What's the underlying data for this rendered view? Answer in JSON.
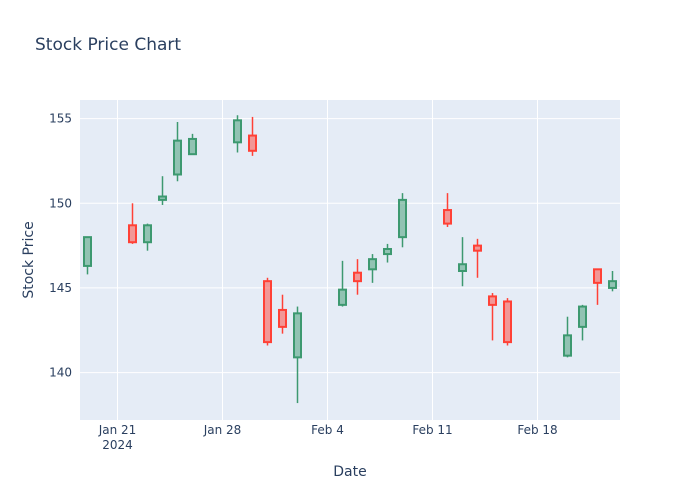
{
  "chart_data": {
    "type": "candlestick",
    "title": "Stock Price Chart",
    "xlabel": "Date",
    "ylabel": "Stock Price",
    "ylim": [
      137.2,
      156.1
    ],
    "y_ticks": [
      140,
      145,
      150,
      155
    ],
    "x_range": [
      "2024-01-18T12:00",
      "2024-02-23T12:00"
    ],
    "x_ticks": [
      {
        "date": "2024-01-21",
        "label": "Jan 21",
        "sublabel": "2024"
      },
      {
        "date": "2024-01-28",
        "label": "Jan 28",
        "sublabel": ""
      },
      {
        "date": "2024-02-04",
        "label": "Feb 4",
        "sublabel": ""
      },
      {
        "date": "2024-02-11",
        "label": "Feb 11",
        "sublabel": ""
      },
      {
        "date": "2024-02-18",
        "label": "Feb 18",
        "sublabel": ""
      }
    ],
    "increasing_color": "#3d9970",
    "decreasing_color": "#ff4136",
    "plot_background": "#e5ecf6",
    "grid": true,
    "candles": [
      {
        "date": "2024-01-19",
        "open": 146.3,
        "high": 148.0,
        "low": 145.8,
        "close": 148.0
      },
      {
        "date": "2024-01-22",
        "open": 148.7,
        "high": 150.0,
        "low": 147.6,
        "close": 147.7
      },
      {
        "date": "2024-01-23",
        "open": 147.7,
        "high": 148.8,
        "low": 147.2,
        "close": 148.7
      },
      {
        "date": "2024-01-24",
        "open": 150.2,
        "high": 151.6,
        "low": 149.9,
        "close": 150.4
      },
      {
        "date": "2024-01-25",
        "open": 151.7,
        "high": 154.8,
        "low": 151.3,
        "close": 153.7
      },
      {
        "date": "2024-01-26",
        "open": 152.9,
        "high": 154.1,
        "low": 152.9,
        "close": 153.8
      },
      {
        "date": "2024-01-29",
        "open": 153.6,
        "high": 155.2,
        "low": 153.0,
        "close": 154.9
      },
      {
        "date": "2024-01-30",
        "open": 154.0,
        "high": 155.1,
        "low": 152.8,
        "close": 153.1
      },
      {
        "date": "2024-01-31",
        "open": 145.4,
        "high": 145.6,
        "low": 141.6,
        "close": 141.8
      },
      {
        "date": "2024-02-01",
        "open": 143.7,
        "high": 144.6,
        "low": 142.3,
        "close": 142.7
      },
      {
        "date": "2024-02-02",
        "open": 140.9,
        "high": 143.9,
        "low": 138.2,
        "close": 143.5
      },
      {
        "date": "2024-02-05",
        "open": 144.0,
        "high": 146.6,
        "low": 143.9,
        "close": 144.9
      },
      {
        "date": "2024-02-06",
        "open": 145.9,
        "high": 146.7,
        "low": 144.6,
        "close": 145.4
      },
      {
        "date": "2024-02-07",
        "open": 146.1,
        "high": 147.0,
        "low": 145.3,
        "close": 146.7
      },
      {
        "date": "2024-02-08",
        "open": 147.0,
        "high": 147.6,
        "low": 146.5,
        "close": 147.3
      },
      {
        "date": "2024-02-09",
        "open": 148.0,
        "high": 150.6,
        "low": 147.4,
        "close": 150.2
      },
      {
        "date": "2024-02-12",
        "open": 149.6,
        "high": 150.6,
        "low": 148.6,
        "close": 148.8
      },
      {
        "date": "2024-02-13",
        "open": 146.0,
        "high": 148.0,
        "low": 145.1,
        "close": 146.4
      },
      {
        "date": "2024-02-14",
        "open": 147.5,
        "high": 147.9,
        "low": 145.6,
        "close": 147.2
      },
      {
        "date": "2024-02-15",
        "open": 144.5,
        "high": 144.7,
        "low": 141.9,
        "close": 144.0
      },
      {
        "date": "2024-02-16",
        "open": 144.2,
        "high": 144.4,
        "low": 141.6,
        "close": 141.8
      },
      {
        "date": "2024-02-20",
        "open": 141.0,
        "high": 143.3,
        "low": 140.9,
        "close": 142.2
      },
      {
        "date": "2024-02-21",
        "open": 142.7,
        "high": 144.0,
        "low": 141.9,
        "close": 143.9
      },
      {
        "date": "2024-02-22",
        "open": 146.1,
        "high": 146.1,
        "low": 144.0,
        "close": 145.3
      },
      {
        "date": "2024-02-23",
        "open": 145.0,
        "high": 146.0,
        "low": 144.8,
        "close": 145.4
      }
    ]
  }
}
